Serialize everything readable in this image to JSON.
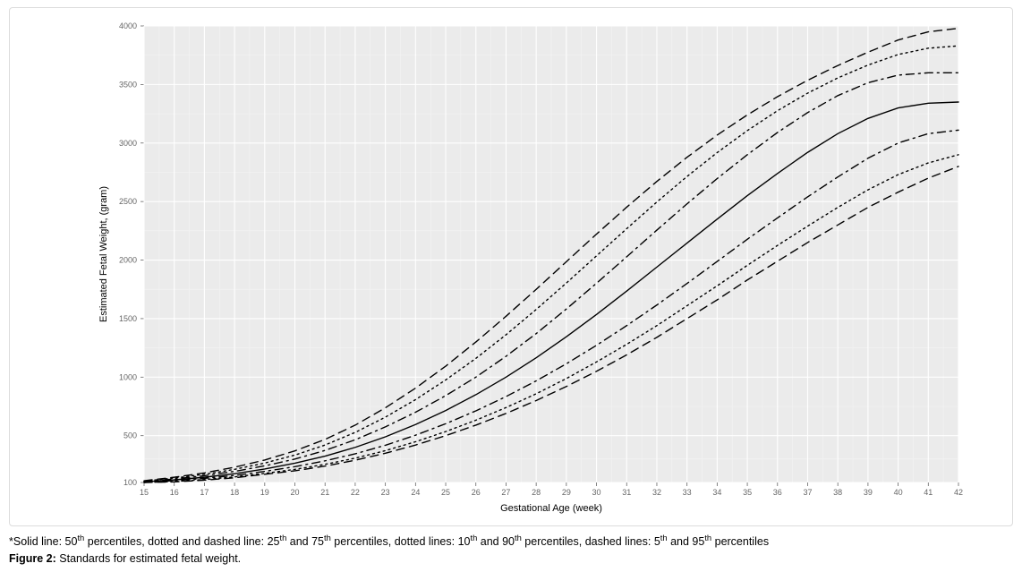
{
  "chart": {
    "type": "line",
    "xlabel": "Gestational Age (week)",
    "ylabel": "Estimated Fetal Weight, (gram)",
    "label_fontsize": 11,
    "tick_fontsize": 9,
    "xlim": [
      15,
      42
    ],
    "ylim": [
      100,
      4000
    ],
    "xtick_step": 1,
    "yticks": [
      100,
      500,
      1000,
      1500,
      2000,
      2500,
      3000,
      3500,
      4000
    ],
    "background_color": "#ffffff",
    "plot_bg": "#ebebeb",
    "grid_major_color": "#ffffff",
    "grid_minor_color": "#f4f4f4",
    "axis_text_color": "#666666",
    "line_color": "#000000",
    "line_width": 1.4,
    "x_values": [
      15,
      16,
      17,
      18,
      19,
      20,
      21,
      22,
      23,
      24,
      25,
      26,
      27,
      28,
      29,
      30,
      31,
      32,
      33,
      34,
      35,
      36,
      37,
      38,
      39,
      40,
      41,
      42
    ],
    "series": [
      {
        "name": "p05",
        "dash": "dashed",
        "values": [
          100,
          105,
          120,
          140,
          170,
          200,
          240,
          290,
          350,
          420,
          500,
          590,
          690,
          800,
          920,
          1050,
          1190,
          1340,
          1500,
          1660,
          1830,
          1990,
          2150,
          2300,
          2450,
          2580,
          2700,
          2800
        ]
      },
      {
        "name": "p10",
        "dash": "dotted",
        "values": [
          100,
          108,
          125,
          148,
          178,
          212,
          255,
          308,
          372,
          448,
          535,
          632,
          740,
          858,
          988,
          1130,
          1280,
          1440,
          1610,
          1780,
          1955,
          2125,
          2290,
          2450,
          2600,
          2730,
          2830,
          2900
        ]
      },
      {
        "name": "p25",
        "dash": "dashdot",
        "values": [
          102,
          115,
          135,
          160,
          195,
          235,
          285,
          345,
          418,
          504,
          602,
          712,
          834,
          968,
          1114,
          1272,
          1440,
          1616,
          1800,
          1988,
          2178,
          2360,
          2540,
          2710,
          2870,
          3000,
          3080,
          3110
        ]
      },
      {
        "name": "p50",
        "dash": "solid",
        "values": [
          105,
          122,
          145,
          175,
          215,
          265,
          325,
          400,
          490,
          595,
          715,
          850,
          1000,
          1165,
          1345,
          1535,
          1735,
          1940,
          2145,
          2350,
          2550,
          2740,
          2920,
          3080,
          3210,
          3300,
          3340,
          3350
        ]
      },
      {
        "name": "p75",
        "dash": "dashdot",
        "values": [
          108,
          130,
          158,
          195,
          242,
          300,
          374,
          465,
          575,
          700,
          842,
          1000,
          1178,
          1372,
          1582,
          1802,
          2028,
          2256,
          2480,
          2696,
          2900,
          3090,
          3260,
          3405,
          3515,
          3580,
          3600,
          3600
        ]
      },
      {
        "name": "p90",
        "dash": "dotted",
        "values": [
          112,
          138,
          170,
          212,
          266,
          334,
          420,
          528,
          658,
          808,
          976,
          1160,
          1362,
          1578,
          1804,
          2036,
          2268,
          2496,
          2714,
          2918,
          3106,
          3276,
          3426,
          3556,
          3666,
          3756,
          3810,
          3830
        ]
      },
      {
        "name": "p95",
        "dash": "dashed",
        "values": [
          115,
          145,
          182,
          230,
          292,
          370,
          468,
          590,
          738,
          906,
          1094,
          1300,
          1520,
          1750,
          1986,
          2222,
          2452,
          2672,
          2878,
          3068,
          3240,
          3396,
          3536,
          3662,
          3776,
          3880,
          3950,
          3980
        ]
      }
    ],
    "dash_patterns": {
      "solid": "",
      "dashed": "9 6",
      "dotted": "2 4",
      "dashdot": "9 5 2 5"
    }
  },
  "caption": {
    "note_prefix": "*Solid line: 50",
    "note_mid1": " percentiles, dotted and dashed line: 25",
    "note_mid2": " and 75",
    "note_mid3": " percentiles, dotted lines: 10",
    "note_mid4": " and 90",
    "note_mid5": " percentiles, dashed lines: 5",
    "note_mid6": " and 95",
    "note_suffix": " percentiles",
    "sup": "th",
    "label": "Figure 2:",
    "title": " Standards for estimated fetal weight."
  }
}
